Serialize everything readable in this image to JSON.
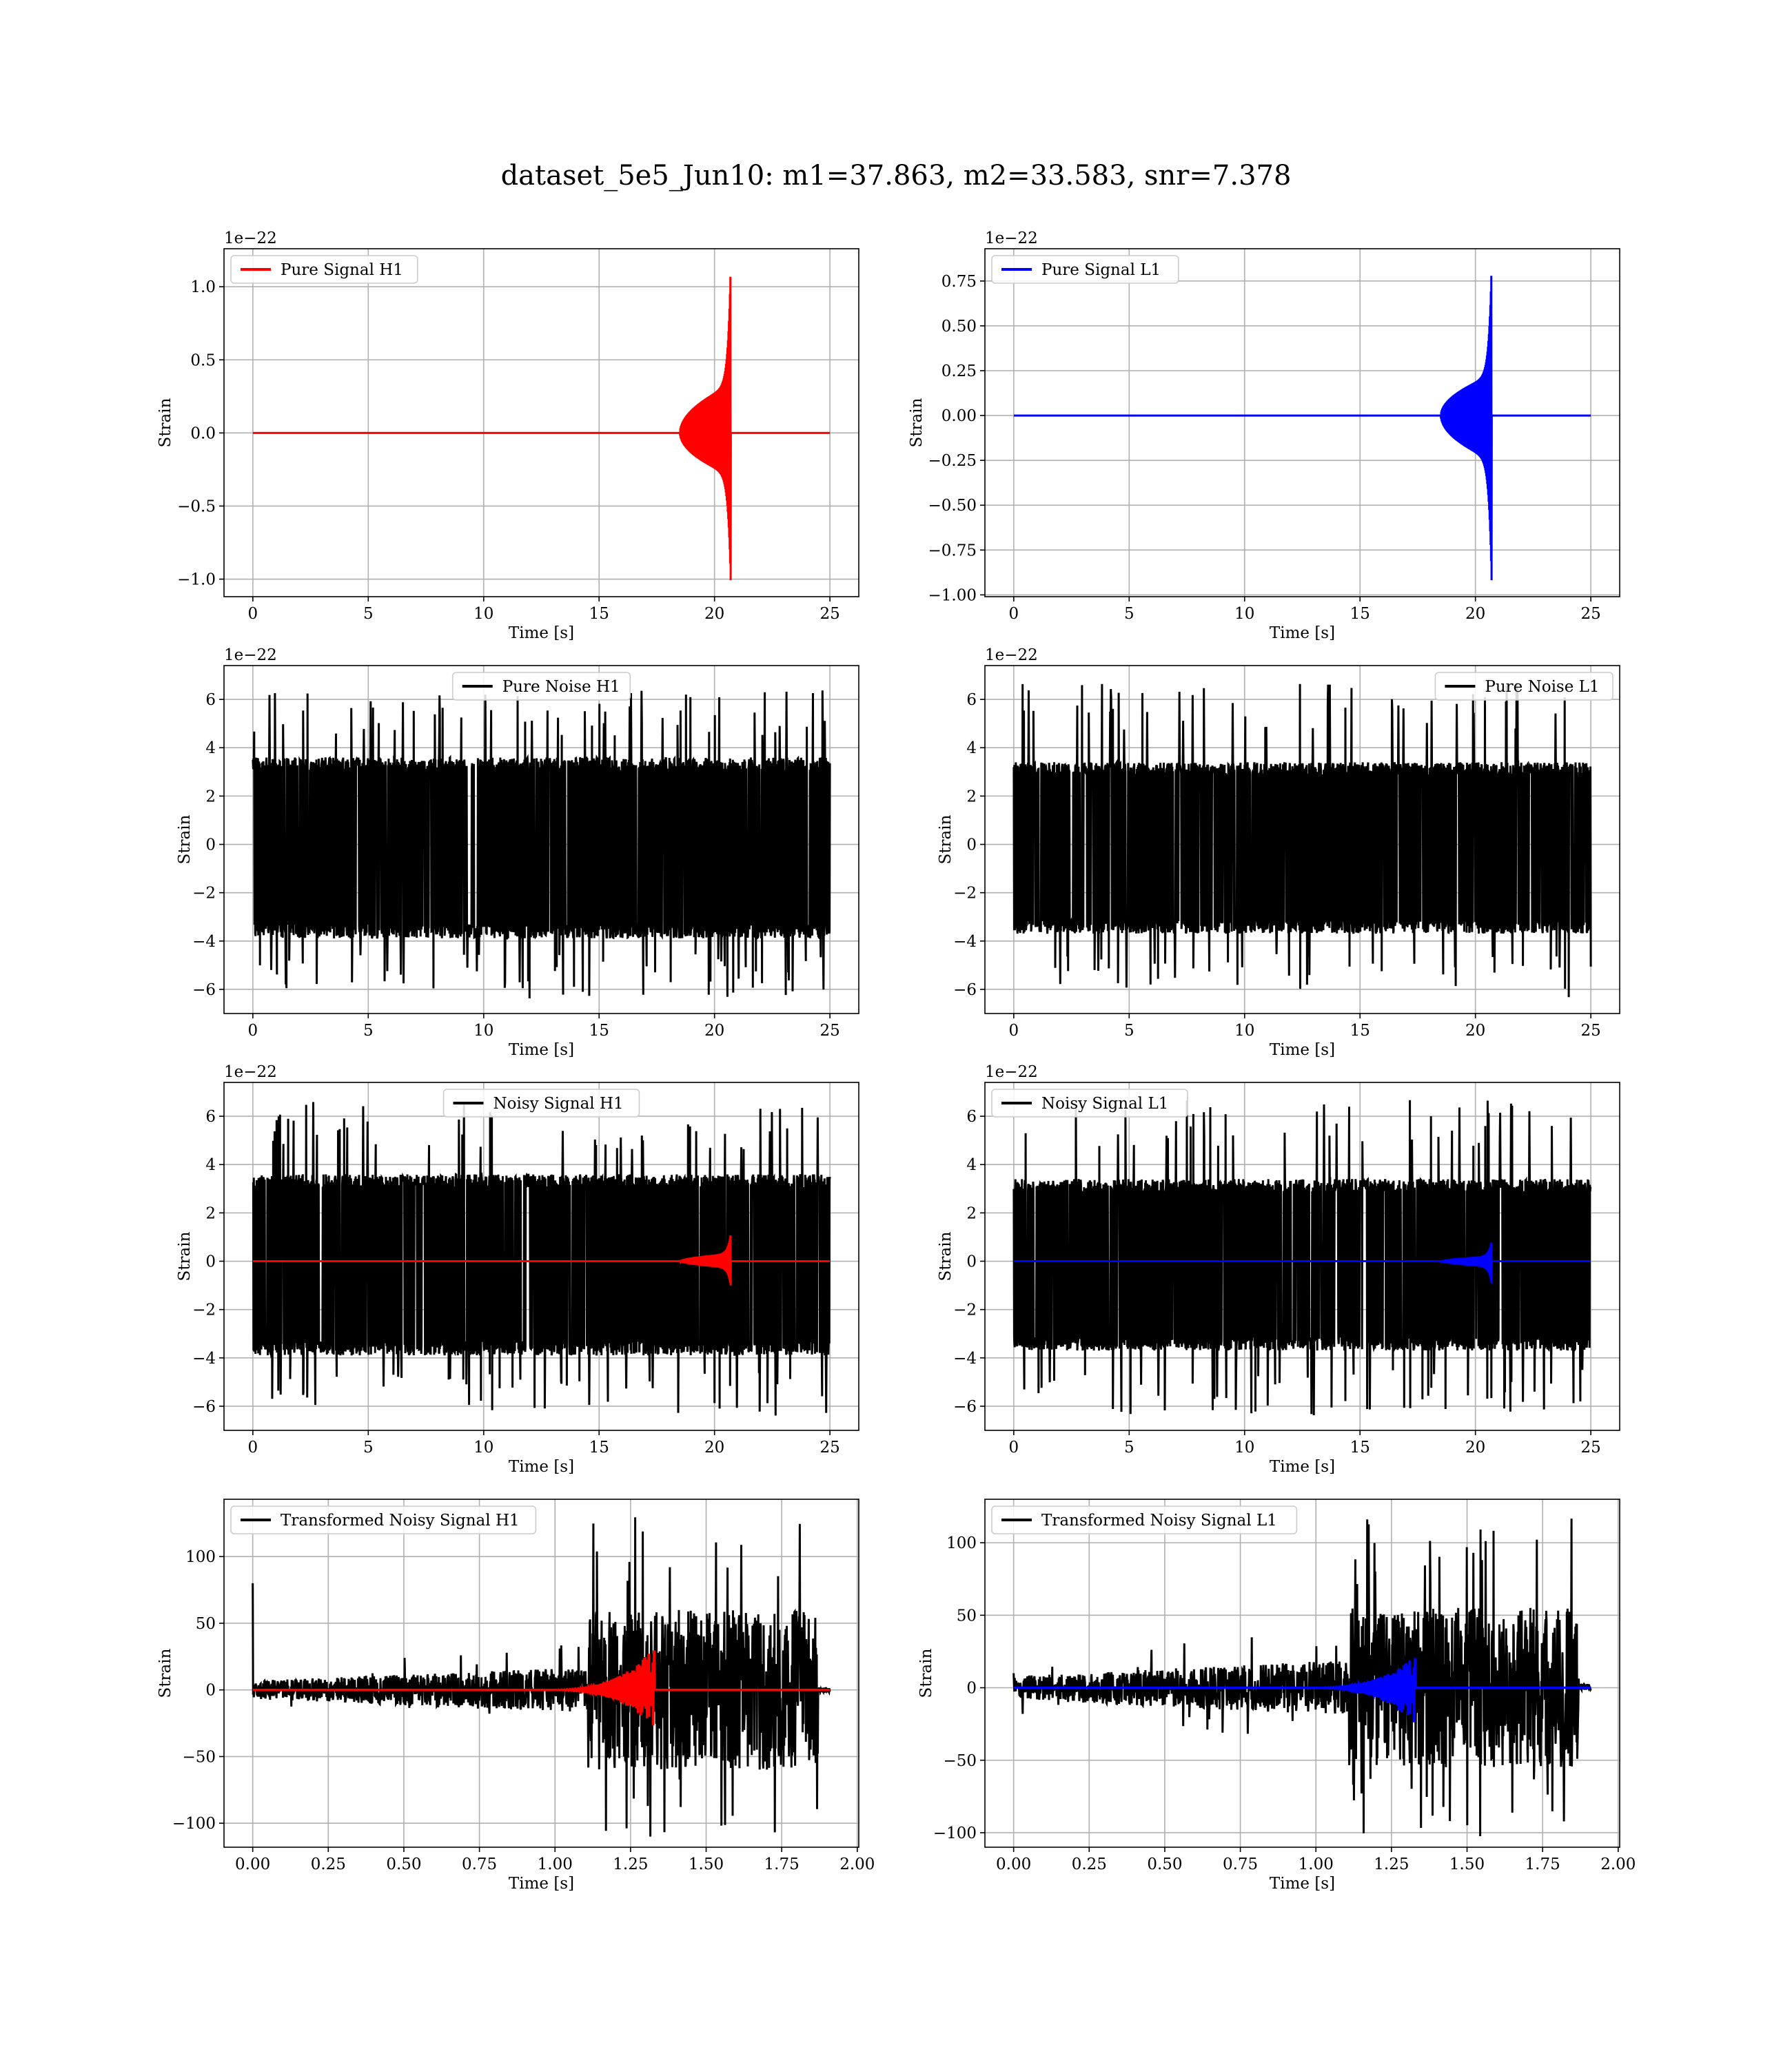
{
  "figure": {
    "suptitle": "dataset_5e5_Jun10: m1=37.863, m2=33.583, snr=7.378"
  },
  "chart_data": [
    {
      "type": "line",
      "legend": "Pure Signal H1",
      "legend_loc": "upper left",
      "color": "#ff0000",
      "signal_kind": "chirp",
      "xlabel": "Time [s]",
      "ylabel": "Strain",
      "offset_text": "1e−22",
      "xlim": [
        -1.25,
        26.25
      ],
      "ylim": [
        -1.12,
        1.26
      ],
      "xticks": [
        0,
        5,
        10,
        15,
        20,
        25
      ],
      "xticklabels": [
        "0",
        "5",
        "10",
        "15",
        "20",
        "25"
      ],
      "yticks": [
        -1.0,
        -0.5,
        0.0,
        0.5,
        1.0
      ],
      "yticklabels": [
        "−1.0",
        "−0.5",
        "0.0",
        "0.5",
        "1.0"
      ],
      "grid": true,
      "series": [
        {
          "role": "chirp",
          "color": "#ff0000",
          "x_start": 0,
          "x_end": 25,
          "t_merger": 20.7,
          "t_onset": 18.5,
          "plateau": 0.33,
          "peak_pos": 1.15,
          "peak_neg": -1.02
        }
      ]
    },
    {
      "type": "line",
      "legend": "Pure Signal L1",
      "legend_loc": "upper left",
      "color": "#0000ff",
      "signal_kind": "chirp",
      "xlabel": "Time [s]",
      "ylabel": "Strain",
      "offset_text": "1e−22",
      "xlim": [
        -1.25,
        26.25
      ],
      "ylim": [
        -1.01,
        0.93
      ],
      "xticks": [
        0,
        5,
        10,
        15,
        20,
        25
      ],
      "xticklabels": [
        "0",
        "5",
        "10",
        "15",
        "20",
        "25"
      ],
      "yticks": [
        -1.0,
        -0.75,
        -0.5,
        -0.25,
        0.0,
        0.25,
        0.5,
        0.75
      ],
      "yticklabels": [
        "−1.00",
        "−0.75",
        "−0.50",
        "−0.25",
        "0.00",
        "0.25",
        "0.50",
        "0.75"
      ],
      "grid": true,
      "series": [
        {
          "role": "chirp",
          "color": "#0000ff",
          "x_start": 0,
          "x_end": 25,
          "t_merger": 20.7,
          "t_onset": 18.5,
          "plateau": 0.25,
          "peak_pos": 0.84,
          "peak_neg": -0.93
        }
      ]
    },
    {
      "type": "line",
      "legend": "Pure Noise H1",
      "legend_loc": "upper center",
      "color": "#000000",
      "signal_kind": "noise",
      "xlabel": "Time [s]",
      "ylabel": "Strain",
      "offset_text": "1e−22",
      "xlim": [
        -1.25,
        26.25
      ],
      "ylim": [
        -7.0,
        7.4
      ],
      "xticks": [
        0,
        5,
        10,
        15,
        20,
        25
      ],
      "xticklabels": [
        "0",
        "5",
        "10",
        "15",
        "20",
        "25"
      ],
      "yticks": [
        -6,
        -4,
        -2,
        0,
        2,
        4,
        6
      ],
      "yticklabels": [
        "−6",
        "−4",
        "−2",
        "0",
        "2",
        "4",
        "6"
      ],
      "grid": true,
      "series": [
        {
          "role": "noise",
          "color": "#000000",
          "x_start": 0,
          "x_end": 25,
          "band_pos": 3.6,
          "band_neg": -3.9,
          "spike_max": 6.4,
          "spike_min": -6.4
        }
      ]
    },
    {
      "type": "line",
      "legend": "Pure Noise L1",
      "legend_loc": "upper right",
      "color": "#000000",
      "signal_kind": "noise",
      "xlabel": "Time [s]",
      "ylabel": "Strain",
      "offset_text": "1e−22",
      "xlim": [
        -1.25,
        26.25
      ],
      "ylim": [
        -7.0,
        7.4
      ],
      "xticks": [
        0,
        5,
        10,
        15,
        20,
        25
      ],
      "xticklabels": [
        "0",
        "5",
        "10",
        "15",
        "20",
        "25"
      ],
      "yticks": [
        -6,
        -4,
        -2,
        0,
        2,
        4,
        6
      ],
      "yticklabels": [
        "−6",
        "−4",
        "−2",
        "0",
        "2",
        "4",
        "6"
      ],
      "grid": true,
      "series": [
        {
          "role": "noise",
          "color": "#000000",
          "x_start": 0,
          "x_end": 25,
          "band_pos": 3.4,
          "band_neg": -3.7,
          "spike_max": 6.7,
          "spike_min": -6.4
        }
      ]
    },
    {
      "type": "line",
      "legend": "Noisy Signal H1",
      "legend_loc": "upper center",
      "color": "#000000",
      "signal_kind": "noisy",
      "xlabel": "Time [s]",
      "ylabel": "Strain",
      "offset_text": "1e−22",
      "xlim": [
        -1.25,
        26.25
      ],
      "ylim": [
        -7.0,
        7.4
      ],
      "xticks": [
        0,
        5,
        10,
        15,
        20,
        25
      ],
      "xticklabels": [
        "0",
        "5",
        "10",
        "15",
        "20",
        "25"
      ],
      "yticks": [
        -6,
        -4,
        -2,
        0,
        2,
        4,
        6
      ],
      "yticklabels": [
        "−6",
        "−4",
        "−2",
        "0",
        "2",
        "4",
        "6"
      ],
      "grid": true,
      "series": [
        {
          "role": "noise",
          "color": "#000000",
          "x_start": 0,
          "x_end": 25,
          "band_pos": 3.6,
          "band_neg": -3.9,
          "spike_max": 6.6,
          "spike_min": -6.4
        },
        {
          "role": "chirp",
          "color": "#ff0000",
          "x_start": 0,
          "x_end": 25,
          "t_merger": 20.7,
          "t_onset": 18.5,
          "plateau": 0.33,
          "peak_pos": 1.15,
          "peak_neg": -1.02
        }
      ]
    },
    {
      "type": "line",
      "legend": "Noisy Signal L1",
      "legend_loc": "upper left",
      "color": "#000000",
      "signal_kind": "noisy",
      "xlabel": "Time [s]",
      "ylabel": "Strain",
      "offset_text": "1e−22",
      "xlim": [
        -1.25,
        26.25
      ],
      "ylim": [
        -7.0,
        7.4
      ],
      "xticks": [
        0,
        5,
        10,
        15,
        20,
        25
      ],
      "xticklabels": [
        "0",
        "5",
        "10",
        "15",
        "20",
        "25"
      ],
      "yticks": [
        -6,
        -4,
        -2,
        0,
        2,
        4,
        6
      ],
      "yticklabels": [
        "−6",
        "−4",
        "−2",
        "0",
        "2",
        "4",
        "6"
      ],
      "grid": true,
      "series": [
        {
          "role": "noise",
          "color": "#000000",
          "x_start": 0,
          "x_end": 25,
          "band_pos": 3.4,
          "band_neg": -3.7,
          "spike_max": 6.7,
          "spike_min": -6.4
        },
        {
          "role": "chirp",
          "color": "#0000ff",
          "x_start": 0,
          "x_end": 25,
          "t_merger": 20.7,
          "t_onset": 18.5,
          "plateau": 0.25,
          "peak_pos": 0.84,
          "peak_neg": -0.93
        }
      ]
    },
    {
      "type": "line",
      "legend": "Transformed Noisy Signal H1",
      "legend_loc": "upper left",
      "color": "#000000",
      "signal_kind": "transformed",
      "xlabel": "Time [s]",
      "ylabel": "Strain",
      "offset_text": "",
      "xlim": [
        -0.095,
        2.005
      ],
      "ylim": [
        -118,
        143
      ],
      "xticks": [
        0.0,
        0.25,
        0.5,
        0.75,
        1.0,
        1.25,
        1.5,
        1.75,
        2.0
      ],
      "xticklabels": [
        "0.00",
        "0.25",
        "0.50",
        "0.75",
        "1.00",
        "1.25",
        "1.50",
        "1.75",
        "2.00"
      ],
      "yticks": [
        -100,
        -50,
        0,
        50,
        100
      ],
      "yticklabels": [
        "−100",
        "−50",
        "0",
        "50",
        "100"
      ],
      "grid": true,
      "series": [
        {
          "role": "tnoise",
          "color": "#000000",
          "x_start": 0,
          "x_end": 1.91,
          "t_loud": 1.11,
          "t_stop": 1.87,
          "quiet_amp": 7,
          "loud_amp": 60,
          "spike_max": 134,
          "spike_min": -111,
          "init_spike": 80
        },
        {
          "role": "tchirp",
          "color": "#ff0000",
          "x_start": 0,
          "x_end": 1.91,
          "t_merger": 1.33,
          "t_onset": 0.95,
          "peak_pos": 32,
          "peak_neg": -28
        }
      ]
    },
    {
      "type": "line",
      "legend": "Transformed Noisy Signal L1",
      "legend_loc": "upper left",
      "color": "#000000",
      "signal_kind": "transformed",
      "xlabel": "Time [s]",
      "ylabel": "Strain",
      "offset_text": "",
      "xlim": [
        -0.095,
        2.005
      ],
      "ylim": [
        -110,
        130
      ],
      "xticks": [
        0.0,
        0.25,
        0.5,
        0.75,
        1.0,
        1.25,
        1.5,
        1.75,
        2.0
      ],
      "xticklabels": [
        "0.00",
        "0.25",
        "0.50",
        "0.75",
        "1.00",
        "1.25",
        "1.50",
        "1.75",
        "2.00"
      ],
      "yticks": [
        -100,
        -50,
        0,
        50,
        100
      ],
      "yticklabels": [
        "−100",
        "−50",
        "0",
        "50",
        "100"
      ],
      "grid": true,
      "series": [
        {
          "role": "tnoise",
          "color": "#000000",
          "x_start": 0,
          "x_end": 1.91,
          "t_loud": 1.11,
          "t_stop": 1.87,
          "quiet_amp": 8,
          "loud_amp": 55,
          "spike_max": 117,
          "spike_min": -104,
          "init_spike": 10
        },
        {
          "role": "tchirp",
          "color": "#0000ff",
          "x_start": 0,
          "x_end": 1.91,
          "t_merger": 1.33,
          "t_onset": 0.95,
          "peak_pos": 22,
          "peak_neg": -25
        }
      ]
    }
  ]
}
